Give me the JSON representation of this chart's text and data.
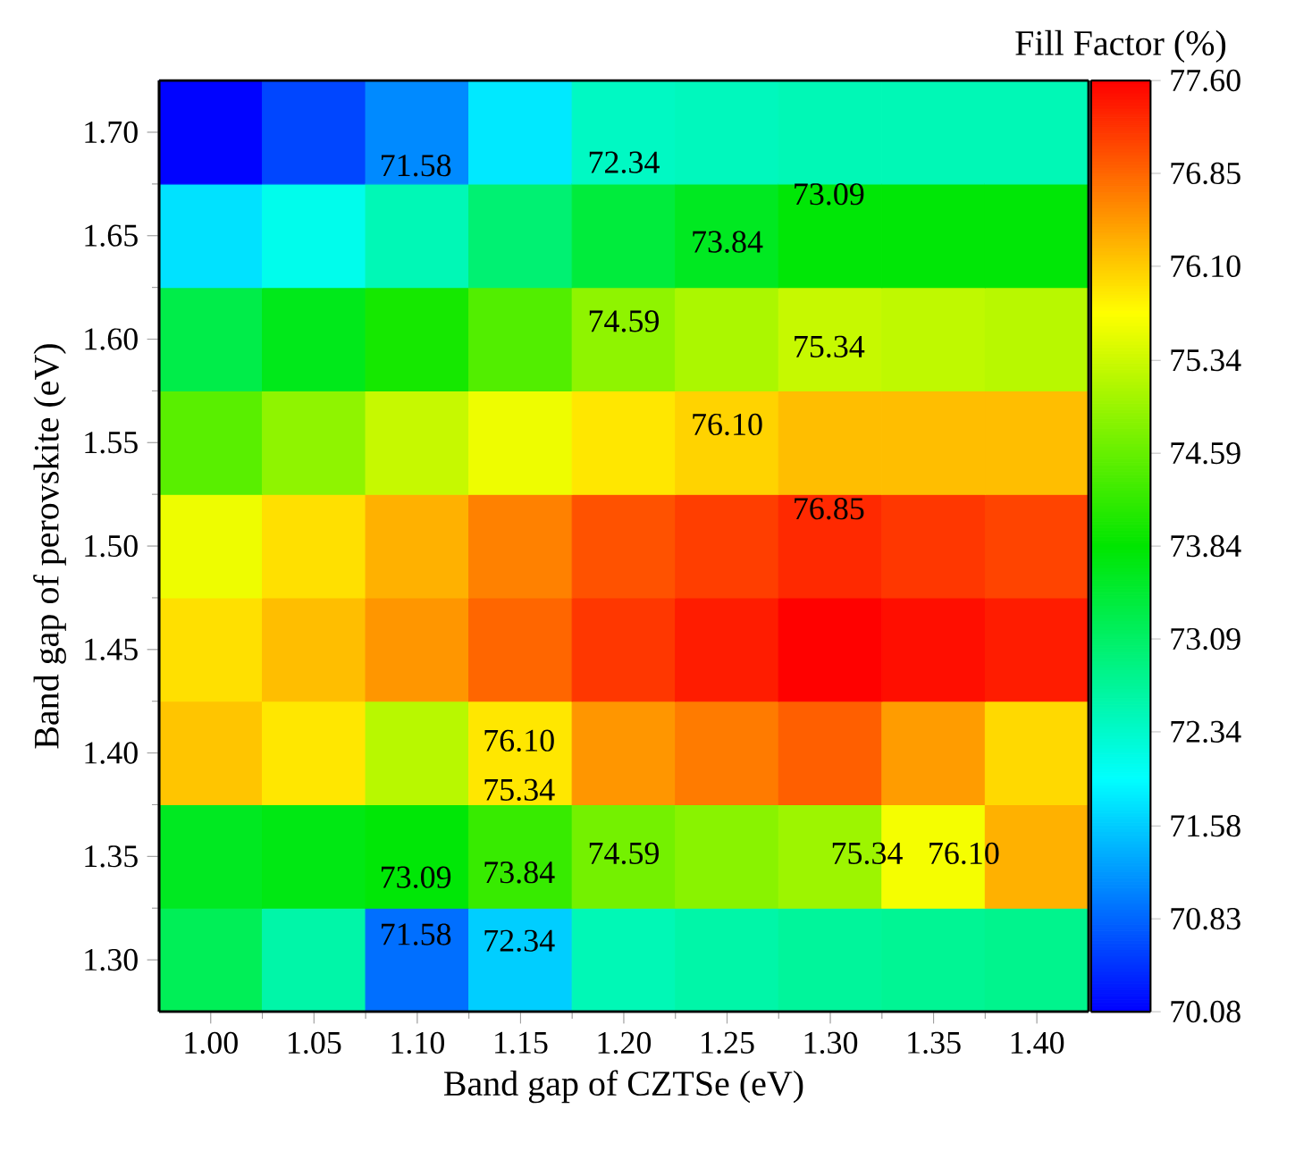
{
  "chart_data": {
    "type": "heatmap",
    "xlabel": "Band gap of CZTSe (eV)",
    "ylabel": "Band gap of perovskite (eV)",
    "clabel": "Fill Factor (%)",
    "categories": [
      "1.00",
      "1.05",
      "1.10",
      "1.15",
      "1.20",
      "1.25",
      "1.30",
      "1.35",
      "1.40"
    ],
    "y_categories": [
      "1.70",
      "1.65",
      "1.60",
      "1.55",
      "1.50",
      "1.45",
      "1.40",
      "1.35",
      "1.30"
    ],
    "cells": [
      [
        70.1,
        70.6,
        71.1,
        71.8,
        72.4,
        72.45,
        72.5,
        72.5,
        72.5
      ],
      [
        71.75,
        72.1,
        72.5,
        73.0,
        73.4,
        73.6,
        73.8,
        73.8,
        73.8
      ],
      [
        73.3,
        73.65,
        74.0,
        74.45,
        74.9,
        75.1,
        75.3,
        75.25,
        75.2
      ],
      [
        74.5,
        74.9,
        75.3,
        75.6,
        75.9,
        76.05,
        76.2,
        76.2,
        76.2
      ],
      [
        75.6,
        75.95,
        76.3,
        76.65,
        77.0,
        77.15,
        77.3,
        77.2,
        77.1
      ],
      [
        75.95,
        76.2,
        76.5,
        76.85,
        77.2,
        77.4,
        77.6,
        77.5,
        77.4
      ],
      [
        76.15,
        75.9,
        75.2,
        75.9,
        76.5,
        76.7,
        76.9,
        76.45,
        76.0
      ],
      [
        73.6,
        73.7,
        73.8,
        74.25,
        74.7,
        74.85,
        75.0,
        75.65,
        76.3
      ],
      [
        73.2,
        72.6,
        70.9,
        71.6,
        72.5,
        72.6,
        72.7,
        72.75,
        72.8
      ]
    ],
    "clim": [
      70.08,
      77.6
    ],
    "cticks": [
      70.08,
      70.83,
      71.58,
      72.34,
      73.09,
      73.84,
      74.59,
      75.34,
      {
        "value": 76.1,
        "label": "76.10"
      },
      76.85,
      {
        "value": 77.6,
        "label": "77.60"
      }
    ],
    "annotations": [
      "71.58",
      "72.34",
      "73.09",
      "73.84",
      "74.59",
      "75.34",
      "76.10",
      "76.85",
      "76.10",
      "75.34",
      "74.59",
      "73.09",
      "73.84",
      "71.58",
      "72.34",
      "75.34",
      "76.10"
    ]
  }
}
